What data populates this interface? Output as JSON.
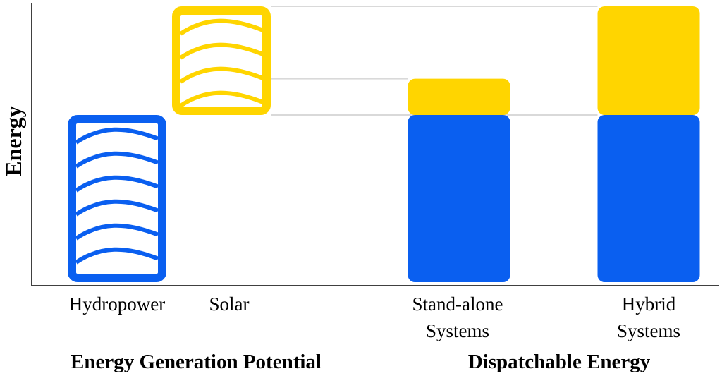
{
  "chart_data": {
    "type": "bar",
    "ylabel": "Energy",
    "xlabel": "",
    "y_tick_labels": "none",
    "grid": false,
    "legend": "none",
    "colors": {
      "hydropower": "#0a5ff0",
      "solar": "#ffd500",
      "guide_line": "#d9d9d9",
      "axis": "#000000"
    },
    "categories": [
      "Hydropower",
      "Solar",
      "Stand-alone Systems",
      "Hybrid Systems"
    ],
    "category_lines": [
      [
        "Hydropower"
      ],
      [
        "Solar"
      ],
      [
        "Stand-alone",
        "Systems"
      ],
      [
        "Hybrid",
        "Systems"
      ]
    ],
    "group_labels": [
      "Energy Generation Potential",
      "Dispatchable Energy"
    ],
    "ylim": [
      0,
      100
    ],
    "series": [
      {
        "key": "hydropower",
        "values": [
          60,
          null,
          60,
          60
        ],
        "style": [
          "wave-outline",
          null,
          "solid",
          "solid"
        ]
      },
      {
        "key": "solar",
        "base": [
          null,
          60,
          60,
          60
        ],
        "values": [
          null,
          39,
          13,
          39
        ],
        "style": [
          null,
          "wave-outline",
          "solid",
          "solid"
        ]
      }
    ]
  }
}
